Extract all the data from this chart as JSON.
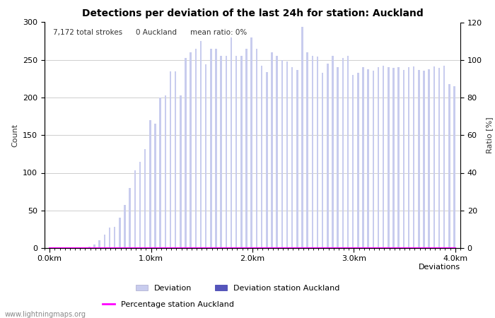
{
  "title": "Detections per deviation of the last 24h for station: Auckland",
  "subtitle_parts": [
    "7,172 total strokes",
    "0 Auckland",
    "mean ratio: 0%"
  ],
  "xlabel": "Deviations",
  "ylabel_left": "Count",
  "ylabel_right": "Ratio [%]",
  "ylim_left": [
    0,
    300
  ],
  "ylim_right": [
    0,
    120
  ],
  "yticks_left": [
    0,
    50,
    100,
    150,
    200,
    250,
    300
  ],
  "yticks_right": [
    0,
    20,
    40,
    60,
    80,
    100,
    120
  ],
  "xtick_labels": [
    "0.0km",
    "1.0km",
    "2.0km",
    "3.0km",
    "4.0km"
  ],
  "xtick_positions": [
    0,
    20,
    40,
    60,
    80
  ],
  "bar_color_light": "#c8ccee",
  "bar_color_dark": "#5555bb",
  "percentage_color": "#ff00ff",
  "watermark": "www.lightningmaps.org",
  "bar_values_all": [
    0,
    0,
    0,
    0,
    0,
    0,
    0,
    0,
    2,
    5,
    10,
    18,
    27,
    28,
    40,
    57,
    80,
    103,
    115,
    131,
    170,
    165,
    200,
    203,
    235,
    235,
    203,
    253,
    260,
    265,
    275,
    244,
    265,
    265,
    255,
    255,
    280,
    255,
    255,
    265,
    280,
    265,
    242,
    234,
    260,
    255,
    250,
    248,
    240,
    237,
    294,
    260,
    255,
    254,
    233,
    245,
    255,
    240,
    253,
    255,
    230,
    233,
    240,
    238,
    236,
    240,
    242,
    240,
    239,
    240,
    237,
    240,
    241,
    237,
    236,
    238,
    241,
    239,
    242,
    218,
    215
  ],
  "bar_values_station": [
    0,
    0,
    0,
    0,
    0,
    0,
    0,
    0,
    0,
    0,
    0,
    0,
    0,
    0,
    0,
    0,
    0,
    0,
    0,
    0,
    0,
    0,
    0,
    0,
    0,
    0,
    0,
    0,
    0,
    0,
    0,
    0,
    0,
    0,
    0,
    0,
    0,
    0,
    0,
    0,
    0,
    0,
    0,
    0,
    0,
    0,
    0,
    0,
    0,
    0,
    0,
    0,
    0,
    0,
    0,
    0,
    0,
    0,
    0,
    0,
    0,
    0,
    0,
    0,
    0,
    0,
    0,
    0,
    0,
    0,
    0,
    0,
    0,
    0,
    0,
    0,
    0,
    0,
    0,
    0,
    0
  ],
  "n_bars": 81,
  "bar_width": 0.35,
  "figsize": [
    7.0,
    4.5
  ],
  "dpi": 100,
  "bg_color": "#ffffff",
  "legend_entries": [
    "Deviation",
    "Deviation station Auckland",
    "Percentage station Auckland"
  ],
  "font_color": "#333333",
  "grid_color": "#aaaaaa",
  "title_fontsize": 10,
  "axis_fontsize": 8,
  "subtitle_fontsize": 7.5
}
